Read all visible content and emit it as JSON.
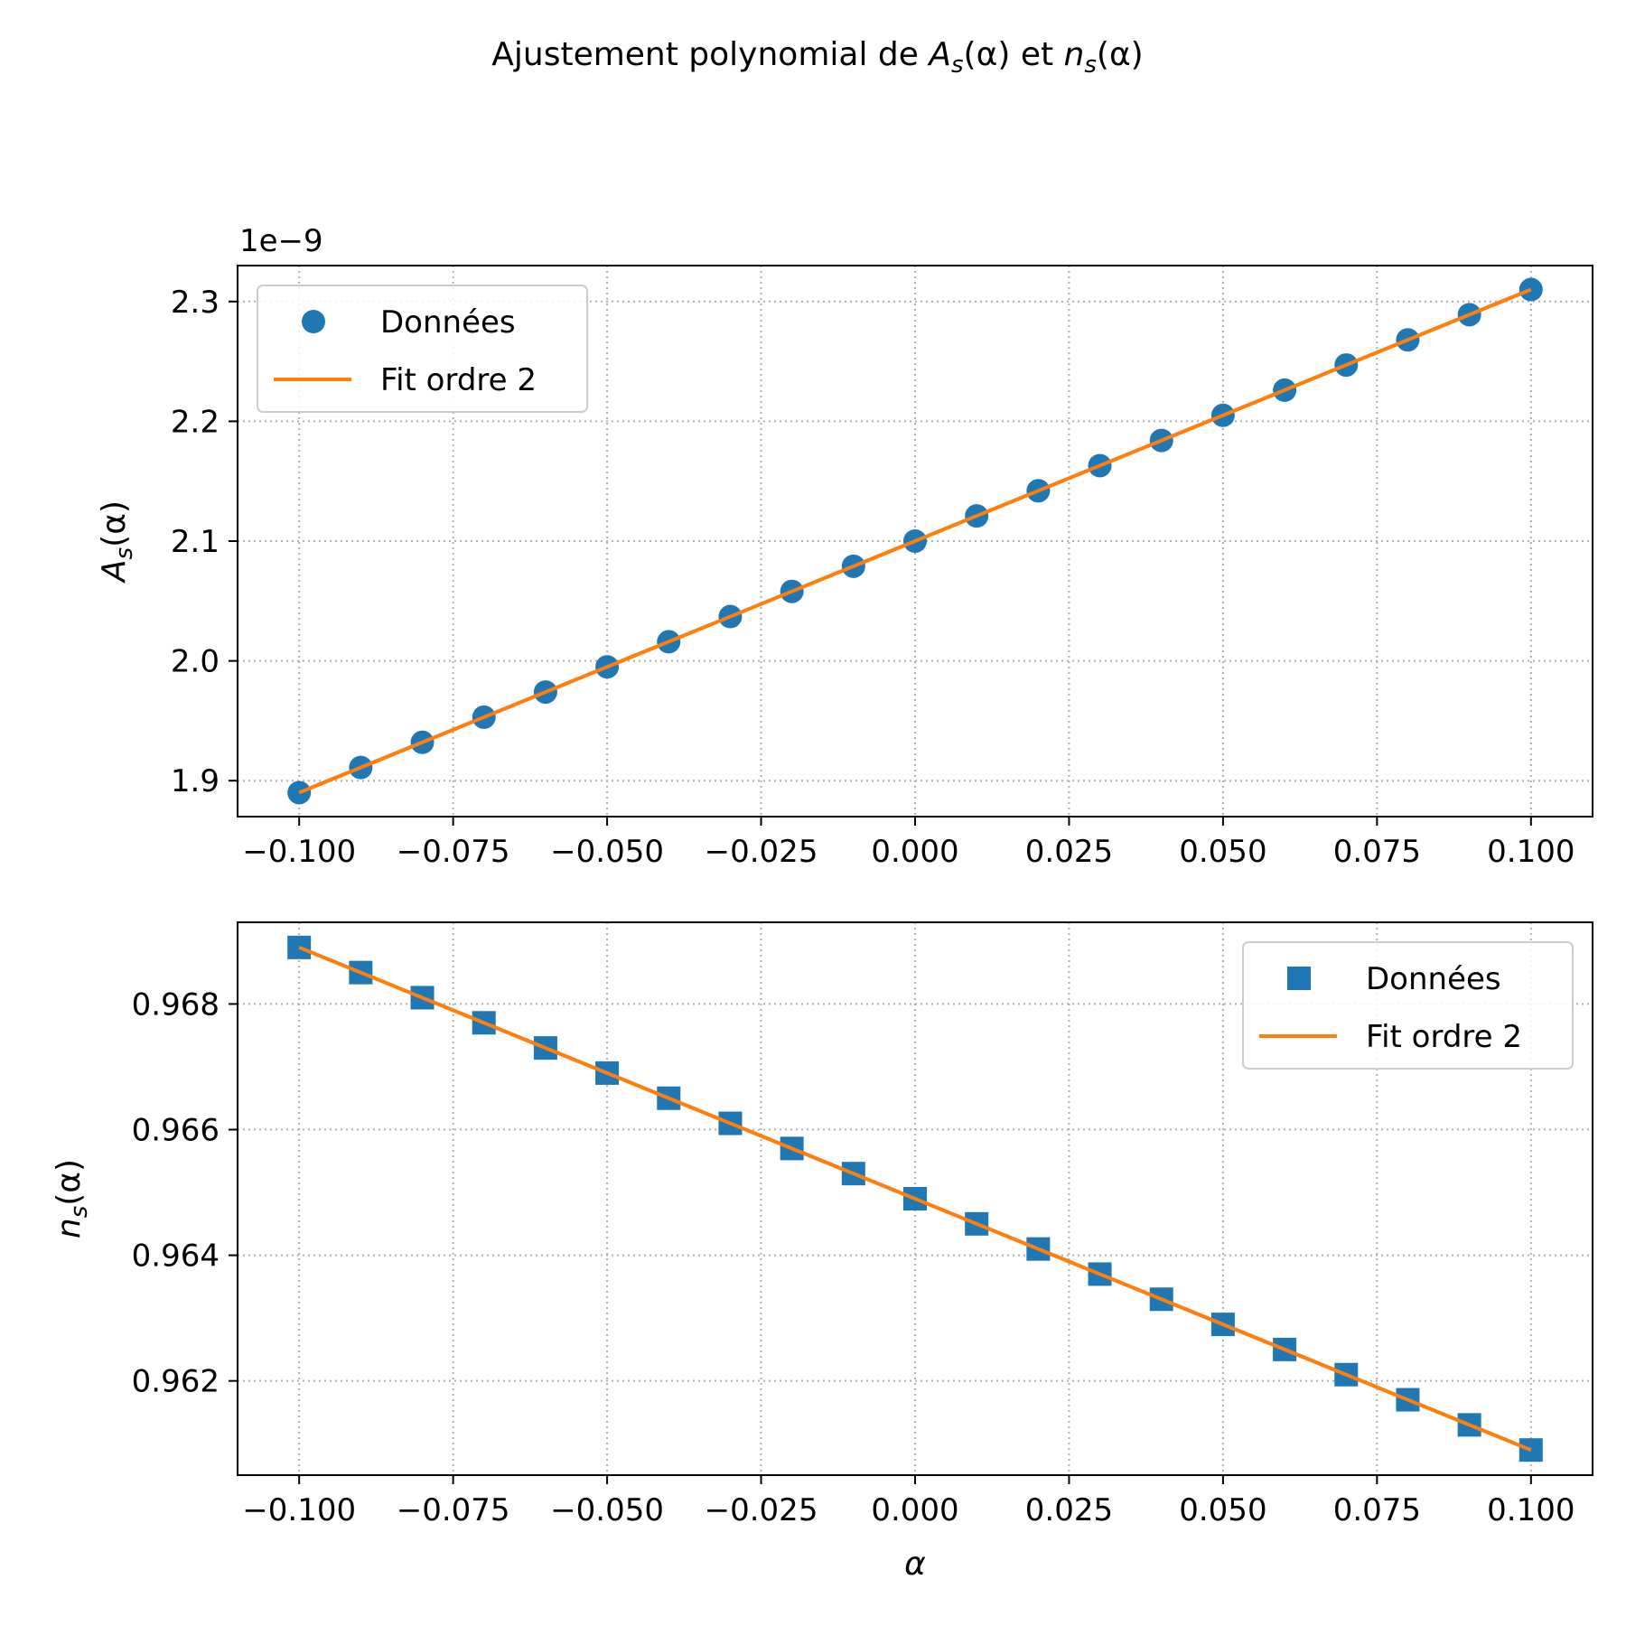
{
  "title": {
    "prefix": "Ajustement polynomial de ",
    "a_main": "A",
    "a_sub": "s",
    "a_args": "(α)",
    "middle": " et ",
    "n_main": "n",
    "n_sub": "s",
    "n_args": "(α)"
  },
  "colors": {
    "data": "#1f77b4",
    "fit": "#ff7f0e",
    "grid": "#b0b0b0"
  },
  "chart_data": [
    {
      "type": "scatter",
      "id": "top",
      "ylabel": {
        "main": "A",
        "sub": "s",
        "args": "(α)"
      },
      "offset_text": "1e−9",
      "xlim": [
        -0.11,
        0.11
      ],
      "ylim": [
        1.87,
        2.33
      ],
      "xticks": [
        -0.1,
        -0.075,
        -0.05,
        -0.025,
        0.0,
        0.025,
        0.05,
        0.075,
        0.1
      ],
      "xtick_labels": [
        "−0.100",
        "−0.075",
        "−0.050",
        "−0.025",
        "0.000",
        "0.025",
        "0.050",
        "0.075",
        "0.100"
      ],
      "yticks": [
        1.9,
        2.0,
        2.1,
        2.2,
        2.3
      ],
      "ytick_labels": [
        "1.9",
        "2.0",
        "2.1",
        "2.2",
        "2.3"
      ],
      "grid": true,
      "legend_position": "upper left",
      "marker": "circle",
      "x": [
        -0.1,
        -0.09,
        -0.08,
        -0.07,
        -0.06,
        -0.05,
        -0.04,
        -0.03,
        -0.02,
        -0.01,
        0.0,
        0.01,
        0.02,
        0.03,
        0.04,
        0.05,
        0.06,
        0.07,
        0.08,
        0.09,
        0.1
      ],
      "series": [
        {
          "name": "Données",
          "kind": "markers",
          "values": [
            1.89,
            1.911,
            1.932,
            1.953,
            1.974,
            1.995,
            2.016,
            2.037,
            2.058,
            2.079,
            2.1,
            2.121,
            2.142,
            2.163,
            2.184,
            2.205,
            2.226,
            2.247,
            2.268,
            2.289,
            2.31
          ]
        },
        {
          "name": "Fit ordre 2",
          "kind": "line",
          "values": [
            1.89,
            1.911,
            1.932,
            1.953,
            1.974,
            1.995,
            2.016,
            2.037,
            2.058,
            2.079,
            2.1,
            2.121,
            2.142,
            2.163,
            2.184,
            2.205,
            2.226,
            2.247,
            2.268,
            2.289,
            2.31
          ]
        }
      ]
    },
    {
      "type": "scatter",
      "id": "bottom",
      "ylabel": {
        "main": "n",
        "sub": "s",
        "args": "(α)"
      },
      "xlabel": "α",
      "xlim": [
        -0.11,
        0.11
      ],
      "ylim": [
        0.9605,
        0.9693
      ],
      "xticks": [
        -0.1,
        -0.075,
        -0.05,
        -0.025,
        0.0,
        0.025,
        0.05,
        0.075,
        0.1
      ],
      "xtick_labels": [
        "−0.100",
        "−0.075",
        "−0.050",
        "−0.025",
        "0.000",
        "0.025",
        "0.050",
        "0.075",
        "0.100"
      ],
      "yticks": [
        0.962,
        0.964,
        0.966,
        0.968
      ],
      "ytick_labels": [
        "0.962",
        "0.964",
        "0.966",
        "0.968"
      ],
      "grid": true,
      "legend_position": "upper right",
      "marker": "square",
      "x": [
        -0.1,
        -0.09,
        -0.08,
        -0.07,
        -0.06,
        -0.05,
        -0.04,
        -0.03,
        -0.02,
        -0.01,
        0.0,
        0.01,
        0.02,
        0.03,
        0.04,
        0.05,
        0.06,
        0.07,
        0.08,
        0.09,
        0.1
      ],
      "series": [
        {
          "name": "Données",
          "kind": "markers",
          "values": [
            0.9689,
            0.9685,
            0.9681,
            0.9677,
            0.9673,
            0.9669,
            0.9665,
            0.9661,
            0.9657,
            0.9653,
            0.9649,
            0.9645,
            0.9641,
            0.9637,
            0.9633,
            0.9629,
            0.9625,
            0.9621,
            0.9617,
            0.9613,
            0.9609
          ]
        },
        {
          "name": "Fit ordre 2",
          "kind": "line",
          "values": [
            0.9689,
            0.9685,
            0.9681,
            0.9677,
            0.9673,
            0.9669,
            0.9665,
            0.9661,
            0.9657,
            0.9653,
            0.9649,
            0.9645,
            0.9641,
            0.9637,
            0.9633,
            0.9629,
            0.9625,
            0.9621,
            0.9617,
            0.9613,
            0.9609
          ]
        }
      ]
    }
  ]
}
